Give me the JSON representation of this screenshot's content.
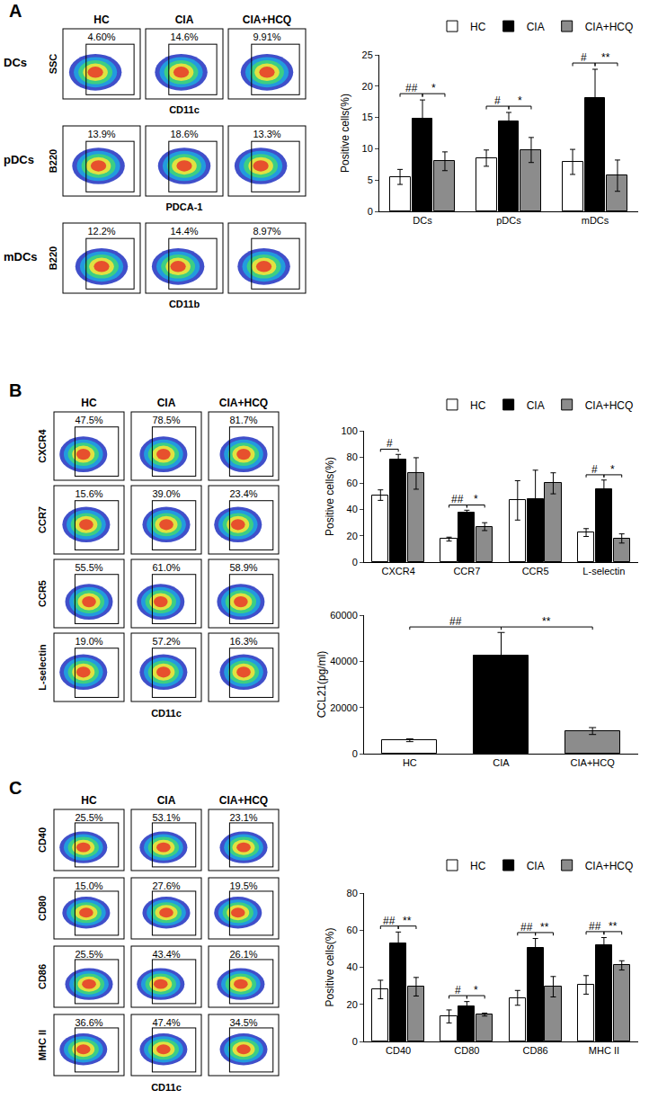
{
  "chart_data": [
    {
      "type": "bar",
      "y_label": "Positive cells(%)",
      "categories": [
        "DCs",
        "pDCs",
        "mDCs"
      ],
      "series": [
        {
          "name": "HC",
          "color": "#ffffff",
          "values": [
            5.5,
            8.5,
            7.9
          ],
          "errors": [
            1.2,
            1.3,
            2.0
          ]
        },
        {
          "name": "CIA",
          "color": "#000000",
          "values": [
            14.8,
            14.3,
            18.1
          ],
          "errors": [
            3.0,
            1.5,
            4.6
          ]
        },
        {
          "name": "CIA+HCQ",
          "color": "#8c8c8c",
          "values": [
            8.0,
            9.8,
            5.7
          ],
          "errors": [
            1.5,
            2.0,
            2.5
          ]
        }
      ],
      "ylim": [
        0,
        25
      ],
      "yticks": [
        0,
        5,
        10,
        15,
        20,
        25
      ],
      "legend": "top right",
      "significance": [
        {
          "category": "DCs",
          "between": [
            "HC",
            "CIA"
          ],
          "label": "##"
        },
        {
          "category": "DCs",
          "between": [
            "CIA",
            "CIA+HCQ"
          ],
          "label": "*"
        },
        {
          "category": "pDCs",
          "between": [
            "HC",
            "CIA"
          ],
          "label": "#"
        },
        {
          "category": "pDCs",
          "between": [
            "CIA",
            "CIA+HCQ"
          ],
          "label": "*"
        },
        {
          "category": "mDCs",
          "between": [
            "HC",
            "CIA"
          ],
          "label": "#"
        },
        {
          "category": "mDCs",
          "between": [
            "CIA",
            "CIA+HCQ"
          ],
          "label": "**"
        }
      ]
    },
    {
      "type": "bar",
      "y_label": "Positive cells(%)",
      "categories": [
        "CXCR4",
        "CCR7",
        "CCR5",
        "L-selectin"
      ],
      "series": [
        {
          "name": "HC",
          "color": "#ffffff",
          "values": [
            51,
            17.5,
            47,
            22.5
          ],
          "errors": [
            4,
            1.5,
            15,
            3
          ]
        },
        {
          "name": "CIA",
          "color": "#000000",
          "values": [
            78,
            38,
            48,
            55.5
          ],
          "errors": [
            4,
            1.5,
            22,
            7
          ]
        },
        {
          "name": "CIA+HCQ",
          "color": "#8c8c8c",
          "values": [
            67.5,
            27,
            60,
            18
          ],
          "errors": [
            12,
            3,
            8,
            3.5
          ]
        }
      ],
      "ylim": [
        0,
        100
      ],
      "yticks": [
        0,
        20,
        40,
        60,
        80,
        100
      ],
      "legend": "top right",
      "significance": [
        {
          "category": "CXCR4",
          "between": [
            "HC",
            "CIA"
          ],
          "label": "#"
        },
        {
          "category": "CCR7",
          "between": [
            "HC",
            "CIA"
          ],
          "label": "##"
        },
        {
          "category": "CCR7",
          "between": [
            "CIA",
            "CIA+HCQ"
          ],
          "label": "*"
        },
        {
          "category": "L-selectin",
          "between": [
            "HC",
            "CIA"
          ],
          "label": "#"
        },
        {
          "category": "L-selectin",
          "between": [
            "CIA",
            "CIA+HCQ"
          ],
          "label": "*"
        }
      ]
    },
    {
      "type": "bar",
      "y_label": "CCL21(pg/ml)",
      "categories": [
        "HC",
        "CIA",
        "CIA+HCQ"
      ],
      "values": [
        5800,
        42500,
        9800
      ],
      "errors": [
        600,
        10000,
        1500
      ],
      "colors": [
        "#ffffff",
        "#000000",
        "#8c8c8c"
      ],
      "ylim": [
        0,
        60000
      ],
      "yticks": [
        0,
        20000,
        40000,
        60000
      ],
      "significance": [
        {
          "between": [
            "HC",
            "CIA"
          ],
          "label": "##"
        },
        {
          "between": [
            "CIA",
            "CIA+HCQ"
          ],
          "label": "**"
        }
      ]
    },
    {
      "type": "bar",
      "y_label": "Positive cells(%)",
      "categories": [
        "CD40",
        "CD80",
        "CD86",
        "MHC II"
      ],
      "series": [
        {
          "name": "HC",
          "color": "#ffffff",
          "values": [
            28,
            13.5,
            23.5,
            30.5
          ],
          "errors": [
            5,
            3.5,
            4,
            5
          ]
        },
        {
          "name": "CIA",
          "color": "#000000",
          "values": [
            53,
            19,
            50.5,
            52
          ],
          "errors": [
            6,
            2.5,
            5,
            4
          ]
        },
        {
          "name": "CIA+HCQ",
          "color": "#8c8c8c",
          "values": [
            29.5,
            14.5,
            29.5,
            41
          ],
          "errors": [
            5,
            0.8,
            5.5,
            2.5
          ]
        }
      ],
      "ylim": [
        0,
        80
      ],
      "yticks": [
        0,
        20,
        40,
        60,
        80
      ],
      "legend": "top right",
      "significance": [
        {
          "category": "CD40",
          "between": [
            "HC",
            "CIA"
          ],
          "label": "##"
        },
        {
          "category": "CD40",
          "between": [
            "CIA",
            "CIA+HCQ"
          ],
          "label": "**"
        },
        {
          "category": "CD80",
          "between": [
            "HC",
            "CIA"
          ],
          "label": "#"
        },
        {
          "category": "CD80",
          "between": [
            "CIA",
            "CIA+HCQ"
          ],
          "label": "*"
        },
        {
          "category": "CD86",
          "between": [
            "HC",
            "CIA"
          ],
          "label": "##"
        },
        {
          "category": "CD86",
          "between": [
            "CIA",
            "CIA+HCQ"
          ],
          "label": "**"
        },
        {
          "category": "MHC II",
          "between": [
            "HC",
            "CIA"
          ],
          "label": "##"
        },
        {
          "category": "MHC II",
          "between": [
            "CIA",
            "CIA+HCQ"
          ],
          "label": "**"
        }
      ]
    }
  ],
  "flow_panels": [
    {
      "label": "A",
      "groups": [
        "HC",
        "CIA",
        "CIA+HCQ"
      ],
      "rows": [
        {
          "name": "DCs",
          "y_label": "SSC",
          "x_label": "CD11c",
          "values": [
            "4.60%",
            "14.6%",
            "9.91%"
          ]
        },
        {
          "name": "pDCs",
          "y_label": "B220",
          "x_label": "PDCA-1",
          "values": [
            "13.9%",
            "18.6%",
            "13.3%"
          ]
        },
        {
          "name": "mDCs",
          "y_label": "B220",
          "x_label": "CD11b",
          "values": [
            "12.2%",
            "14.4%",
            "8.97%"
          ]
        }
      ]
    },
    {
      "label": "B",
      "groups": [
        "HC",
        "CIA",
        "CIA+HCQ"
      ],
      "x_label": "CD11c",
      "rows": [
        {
          "y_label": "CXCR4",
          "values": [
            "47.5%",
            "78.5%",
            "81.7%"
          ]
        },
        {
          "y_label": "CCR7",
          "values": [
            "15.6%",
            "39.0%",
            "23.4%"
          ]
        },
        {
          "y_label": "CCR5",
          "values": [
            "55.5%",
            "61.0%",
            "58.9%"
          ]
        },
        {
          "y_label": "L-selectin",
          "values": [
            "19.0%",
            "57.2%",
            "16.3%"
          ]
        }
      ]
    },
    {
      "label": "C",
      "groups": [
        "HC",
        "CIA",
        "CIA+HCQ"
      ],
      "x_label": "CD11c",
      "rows": [
        {
          "y_label": "CD40",
          "values": [
            "25.5%",
            "53.1%",
            "23.1%"
          ]
        },
        {
          "y_label": "CD80",
          "values": [
            "15.0%",
            "27.6%",
            "19.5%"
          ]
        },
        {
          "y_label": "CD86",
          "values": [
            "25.5%",
            "43.4%",
            "26.1%"
          ]
        },
        {
          "y_label": "MHC II",
          "values": [
            "36.6%",
            "47.4%",
            "34.5%"
          ]
        }
      ]
    }
  ]
}
